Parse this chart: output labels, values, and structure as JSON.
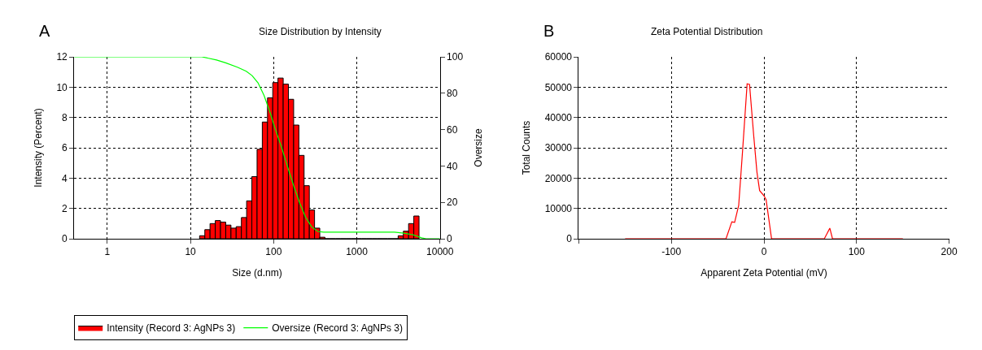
{
  "chart_data": [
    {
      "type": "histogram",
      "title": "Size Distribution by Intensity",
      "xlabel": "Size (d.nm)",
      "ylabel": "Intensity (Percent)",
      "y2label": "Oversize",
      "annotations": [
        "A"
      ],
      "log": "x",
      "xlim": [
        0.4,
        10000
      ],
      "xticks": [
        1,
        10,
        100,
        1000,
        10000
      ],
      "ylim": [
        0,
        12
      ],
      "yticks": [
        0,
        2,
        4,
        6,
        8,
        10,
        12
      ],
      "y2lim": [
        0,
        100
      ],
      "y2ticks": [
        0,
        20,
        40,
        60,
        80,
        100
      ],
      "grid": true,
      "legend": "bottom",
      "series": [
        {
          "type": "histogram",
          "name": "Intensity (Record 3: AgNPs 3)",
          "color": "#ff0000",
          "bins": [
            12.88,
            14.89,
            17.2,
            19.88,
            22.98,
            26.56,
            30.7,
            35.46,
            40.99,
            47.37,
            54.75,
            63.25,
            73.11,
            84.49,
            97.62,
            112.8,
            130.4,
            150.7,
            174.2,
            201.3,
            232.6,
            268.8,
            310.6,
            359.0,
            414.8,
            479.5,
            554.0,
            640.4,
            739.9,
            855.1,
            988.1,
            1142,
            1320,
            1525,
            1763,
            2037,
            2354,
            2720,
            3144,
            3633,
            4199,
            4852,
            5607
          ],
          "values": [
            0.2,
            0.6,
            1.0,
            1.2,
            1.1,
            0.9,
            0.7,
            0.8,
            1.4,
            2.5,
            4.1,
            5.9,
            7.7,
            9.3,
            10.3,
            10.6,
            10.2,
            9.2,
            7.5,
            5.5,
            3.5,
            1.9,
            0.7,
            0.1,
            0,
            0,
            0,
            0,
            0,
            0,
            0,
            0,
            0,
            0,
            0,
            0,
            0,
            0,
            0.2,
            0.5,
            1.0,
            1.5
          ]
        },
        {
          "type": "line",
          "name": "Oversize (Record 3: AgNPs 3)",
          "color": "#00ff00",
          "axis": "y2",
          "x": [
            0.4,
            13.7,
            20.6,
            26.5,
            36.7,
            46.9,
            55.1,
            65,
            76.7,
            90.6,
            107,
            126,
            148,
            175,
            207,
            243,
            287,
            339,
            400,
            2842,
            3670,
            4740,
            6000,
            6820,
            10000
          ],
          "values": [
            100,
            100,
            98.3,
            96.7,
            94.3,
            92.1,
            89.7,
            85.7,
            78.8,
            69.4,
            59,
            49.6,
            39.2,
            28.9,
            19.4,
            11.7,
            6.5,
            4,
            3.6,
            3.6,
            3.1,
            2.2,
            0.5,
            0,
            0
          ]
        }
      ]
    },
    {
      "type": "line",
      "title": "Zeta Potential Distribution",
      "xlabel": "Apparent Zeta Potential (mV)",
      "ylabel": "Total Counts",
      "annotations": [
        "B"
      ],
      "xlim": [
        -200,
        200
      ],
      "xticks": [
        {
          "value": -200,
          "label": null
        },
        -100,
        0,
        100,
        200
      ],
      "ylim": [
        0,
        60000
      ],
      "yticks": [
        0,
        10000,
        20000,
        30000,
        40000,
        50000,
        60000
      ],
      "grid": true,
      "series": [
        {
          "color": "#ff0000",
          "x": [
            -150,
            -41,
            -34.7,
            -31.7,
            -27.3,
            -22.9,
            -18.2,
            -15.6,
            -11.2,
            -7.6,
            -4.7,
            0,
            2.3,
            8.2,
            65.2,
            71.1,
            74,
            150
          ],
          "values": [
            0,
            0,
            5600,
            5400,
            11000,
            29900,
            51100,
            50900,
            34400,
            22000,
            15900,
            14200,
            12900,
            0,
            0,
            3500,
            0,
            0
          ]
        }
      ]
    }
  ]
}
